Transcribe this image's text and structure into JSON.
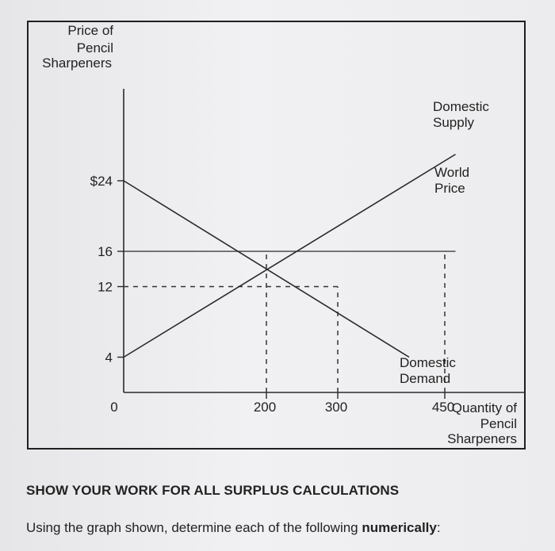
{
  "chart_data": {
    "type": "line",
    "ylabel": [
      "Price of",
      "Pencil",
      "Sharpeners"
    ],
    "xlabel": [
      "Quantity of",
      "Pencil",
      "Sharpeners"
    ],
    "origin_label": "0",
    "y_ticks": [
      {
        "value": 4,
        "label": "4"
      },
      {
        "value": 12,
        "label": "12"
      },
      {
        "value": 16,
        "label": "16"
      },
      {
        "value": 24,
        "label": "$24"
      }
    ],
    "x_ticks": [
      {
        "value": 200,
        "label": "200"
      },
      {
        "value": 300,
        "label": "300"
      },
      {
        "value": 450,
        "label": "450"
      }
    ],
    "xlim": [
      0,
      600
    ],
    "ylim": [
      0,
      26
    ],
    "series": [
      {
        "name": [
          "Domestic",
          "Supply"
        ],
        "points": [
          [
            0,
            4
          ],
          [
            465,
            27
          ]
        ]
      },
      {
        "name": [
          "Domestic",
          "Demand"
        ],
        "points": [
          [
            0,
            24
          ],
          [
            400,
            4
          ]
        ]
      },
      {
        "name": [
          "World",
          "Price"
        ],
        "points": [
          [
            0,
            16
          ],
          [
            465,
            16
          ]
        ]
      }
    ],
    "reference_lines": [
      {
        "points": [
          [
            0,
            12
          ],
          [
            300,
            12
          ]
        ]
      },
      {
        "points": [
          [
            200,
            0
          ],
          [
            200,
            16
          ]
        ]
      },
      {
        "points": [
          [
            300,
            0
          ],
          [
            300,
            12
          ]
        ]
      },
      {
        "points": [
          [
            450,
            0
          ],
          [
            450,
            16
          ]
        ]
      }
    ],
    "grid": false
  },
  "text": {
    "heading": "SHOW YOUR WORK FOR ALL SURPLUS CALCULATIONS",
    "instruction_prefix": "Using the graph shown, determine each of the following ",
    "instruction_bold": "numerically",
    "instruction_suffix": ":"
  }
}
